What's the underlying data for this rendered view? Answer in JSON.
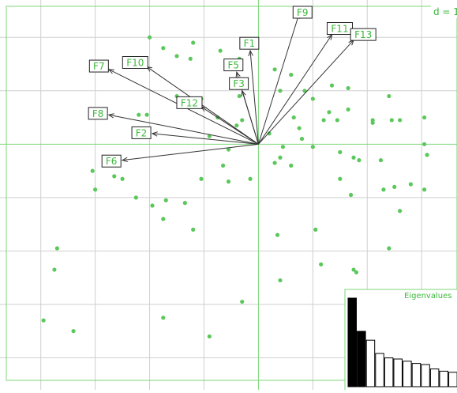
{
  "chart_data": {
    "type": "scatter",
    "title": "",
    "scale_label": "d = 1",
    "inset_title": "Eigenvalues",
    "xlim": [
      -4.75,
      3.65
    ],
    "ylim": [
      -4.6,
      2.7
    ],
    "grid": true,
    "grid_step": 1,
    "colors": {
      "grid": "#cfcfcf",
      "axes": "#7dd67a",
      "points": "#5bc85b",
      "label_text": "#3db83d",
      "arrows": "#333333"
    },
    "points": [
      [
        -2.0,
        2.0
      ],
      [
        -1.75,
        1.8
      ],
      [
        -1.5,
        1.65
      ],
      [
        -1.2,
        1.9
      ],
      [
        -1.25,
        1.6
      ],
      [
        -0.7,
        1.75
      ],
      [
        -0.55,
        1.55
      ],
      [
        -0.35,
        1.6
      ],
      [
        -0.5,
        1.45
      ],
      [
        0.3,
        1.4
      ],
      [
        0.4,
        1.0
      ],
      [
        0.6,
        1.3
      ],
      [
        -1.5,
        0.9
      ],
      [
        -1.05,
        0.85
      ],
      [
        -0.35,
        0.9
      ],
      [
        -0.75,
        0.5
      ],
      [
        -0.3,
        0.45
      ],
      [
        -2.2,
        0.55
      ],
      [
        -2.05,
        0.55
      ],
      [
        -0.4,
        0.35
      ],
      [
        -0.9,
        0.15
      ],
      [
        0.2,
        0.2
      ],
      [
        0.85,
        1.0
      ],
      [
        1.0,
        0.85
      ],
      [
        1.35,
        1.1
      ],
      [
        1.65,
        1.05
      ],
      [
        1.3,
        0.6
      ],
      [
        1.2,
        0.45
      ],
      [
        1.45,
        0.45
      ],
      [
        1.65,
        0.65
      ],
      [
        2.1,
        0.4
      ],
      [
        2.1,
        0.45
      ],
      [
        2.45,
        0.45
      ],
      [
        2.6,
        0.45
      ],
      [
        3.05,
        0.5
      ],
      [
        2.4,
        0.9
      ],
      [
        0.65,
        0.5
      ],
      [
        0.75,
        0.3
      ],
      [
        0.8,
        0.1
      ],
      [
        0.45,
        -0.05
      ],
      [
        0.4,
        -0.25
      ],
      [
        0.6,
        -0.4
      ],
      [
        0.3,
        -0.35
      ],
      [
        -0.55,
        -0.1
      ],
      [
        -0.65,
        -0.4
      ],
      [
        -0.15,
        -0.65
      ],
      [
        -0.55,
        -0.7
      ],
      [
        -1.05,
        -0.65
      ],
      [
        -2.6,
        -0.3
      ],
      [
        -3.05,
        -0.5
      ],
      [
        -2.65,
        -0.6
      ],
      [
        -2.5,
        -0.65
      ],
      [
        -3.0,
        -0.85
      ],
      [
        -2.25,
        -1.0
      ],
      [
        -1.95,
        -1.15
      ],
      [
        -1.7,
        -1.05
      ],
      [
        -1.35,
        -1.1
      ],
      [
        -1.75,
        -1.4
      ],
      [
        -1.2,
        -1.6
      ],
      [
        1.0,
        -0.05
      ],
      [
        1.5,
        -0.15
      ],
      [
        1.75,
        -0.25
      ],
      [
        1.85,
        -0.3
      ],
      [
        2.25,
        -0.3
      ],
      [
        1.5,
        -0.65
      ],
      [
        1.7,
        -0.95
      ],
      [
        2.3,
        -0.85
      ],
      [
        2.5,
        -0.8
      ],
      [
        2.8,
        -0.75
      ],
      [
        3.05,
        -0.85
      ],
      [
        2.6,
        -1.25
      ],
      [
        2.4,
        -1.95
      ],
      [
        0.35,
        -1.7
      ],
      [
        1.05,
        -1.6
      ],
      [
        1.15,
        -2.25
      ],
      [
        3.05,
        0.0
      ],
      [
        3.1,
        -0.2
      ],
      [
        -3.7,
        -1.95
      ],
      [
        -3.75,
        -2.35
      ],
      [
        1.75,
        -2.35
      ],
      [
        0.4,
        -2.55
      ],
      [
        -0.3,
        -2.95
      ],
      [
        -1.75,
        -3.25
      ],
      [
        -3.95,
        -3.3
      ],
      [
        -3.4,
        -3.5
      ],
      [
        -0.9,
        -3.6
      ],
      [
        1.8,
        -2.4
      ]
    ],
    "arrows": [
      {
        "label": "F1",
        "x": -0.15,
        "y": 1.75
      },
      {
        "label": "F2",
        "x": -1.95,
        "y": 0.2
      },
      {
        "label": "F3",
        "x": -0.3,
        "y": 1.0
      },
      {
        "label": "F5",
        "x": -0.4,
        "y": 1.35
      },
      {
        "label": "F6",
        "x": -2.5,
        "y": -0.3
      },
      {
        "label": "F7",
        "x": -2.75,
        "y": 1.4
      },
      {
        "label": "F8",
        "x": -2.75,
        "y": 0.55
      },
      {
        "label": "F9",
        "x": 0.75,
        "y": 2.45
      },
      {
        "label": "F10",
        "x": -2.05,
        "y": 1.45
      },
      {
        "label": "F11",
        "x": 1.35,
        "y": 2.05
      },
      {
        "label": "F12",
        "x": -1.05,
        "y": 0.7
      },
      {
        "label": "F13",
        "x": 1.75,
        "y": 1.95
      }
    ],
    "eigenvalues": [
      8.0,
      5.0,
      4.2,
      3.0,
      2.6,
      2.5,
      2.3,
      2.1,
      2.0,
      1.6,
      1.4,
      1.3,
      1.0
    ]
  }
}
